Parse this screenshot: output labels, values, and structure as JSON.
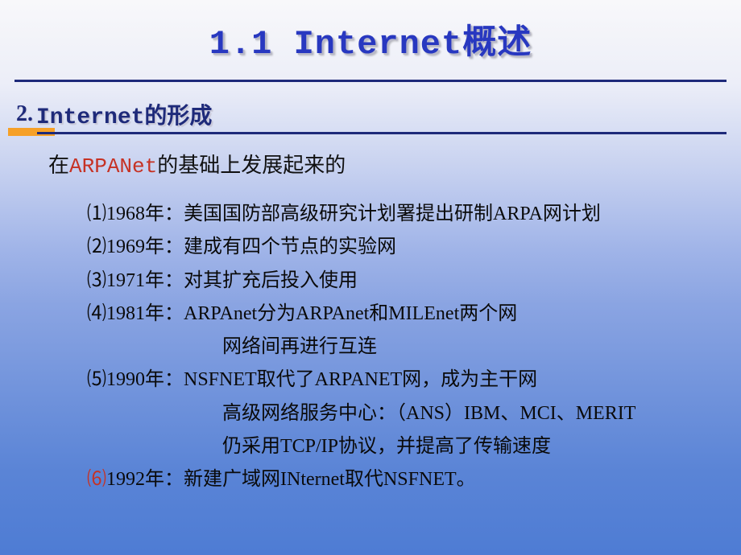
{
  "colors": {
    "title_color": "#2838c0",
    "section_color": "#1e2a7a",
    "highlight_color": "#c63224",
    "divider_color": "#1e2a7a",
    "accent_bar_color": "#f6a028",
    "body_text_color": "#0a0a0a",
    "bg_gradient": [
      "#f8f8fa",
      "#eceef8",
      "#c8d2f0",
      "#a0b4e8",
      "#8aa4e2",
      "#7294dc",
      "#5a84d6",
      "#4e7cd4"
    ]
  },
  "typography": {
    "title_fontsize": 42,
    "section_fontsize": 28,
    "intro_fontsize": 26,
    "list_fontsize": 24,
    "line_height": 1.72,
    "title_font": "Courier New / SimSun",
    "body_font": "SimSun"
  },
  "title": "1.1 Internet概述",
  "section": {
    "num": "2.",
    "label": "Internet的形成"
  },
  "intro": {
    "prefix": "在",
    "highlight": "ARPANet",
    "suffix": "的基础上发展起来的"
  },
  "items": [
    {
      "num": "⑴",
      "text": "1968年：美国国防部高级研究计划署提出研制ARPA网计划"
    },
    {
      "num": "⑵",
      "text": "1969年：建成有四个节点的实验网"
    },
    {
      "num": "⑶",
      "text": "1971年：对其扩充后投入使用"
    },
    {
      "num": "⑷",
      "text": "1981年：ARPAnet分为ARPAnet和MILEnet两个网"
    },
    {
      "num": "",
      "text": "网络间再进行互连",
      "indent": true
    },
    {
      "num": "⑸",
      "text": "1990年：NSFNET取代了ARPANET网，成为主干网"
    },
    {
      "num": "",
      "text": "高级网络服务中心：（ANS）IBM、MCI、MERIT",
      "indent": true
    },
    {
      "num": "",
      "text": "仍采用TCP/IP协议，并提高了传输速度",
      "indent": true
    },
    {
      "num": "⑹",
      "num_red": true,
      "text": "1992年：新建广域网INternet取代NSFNET。"
    }
  ]
}
